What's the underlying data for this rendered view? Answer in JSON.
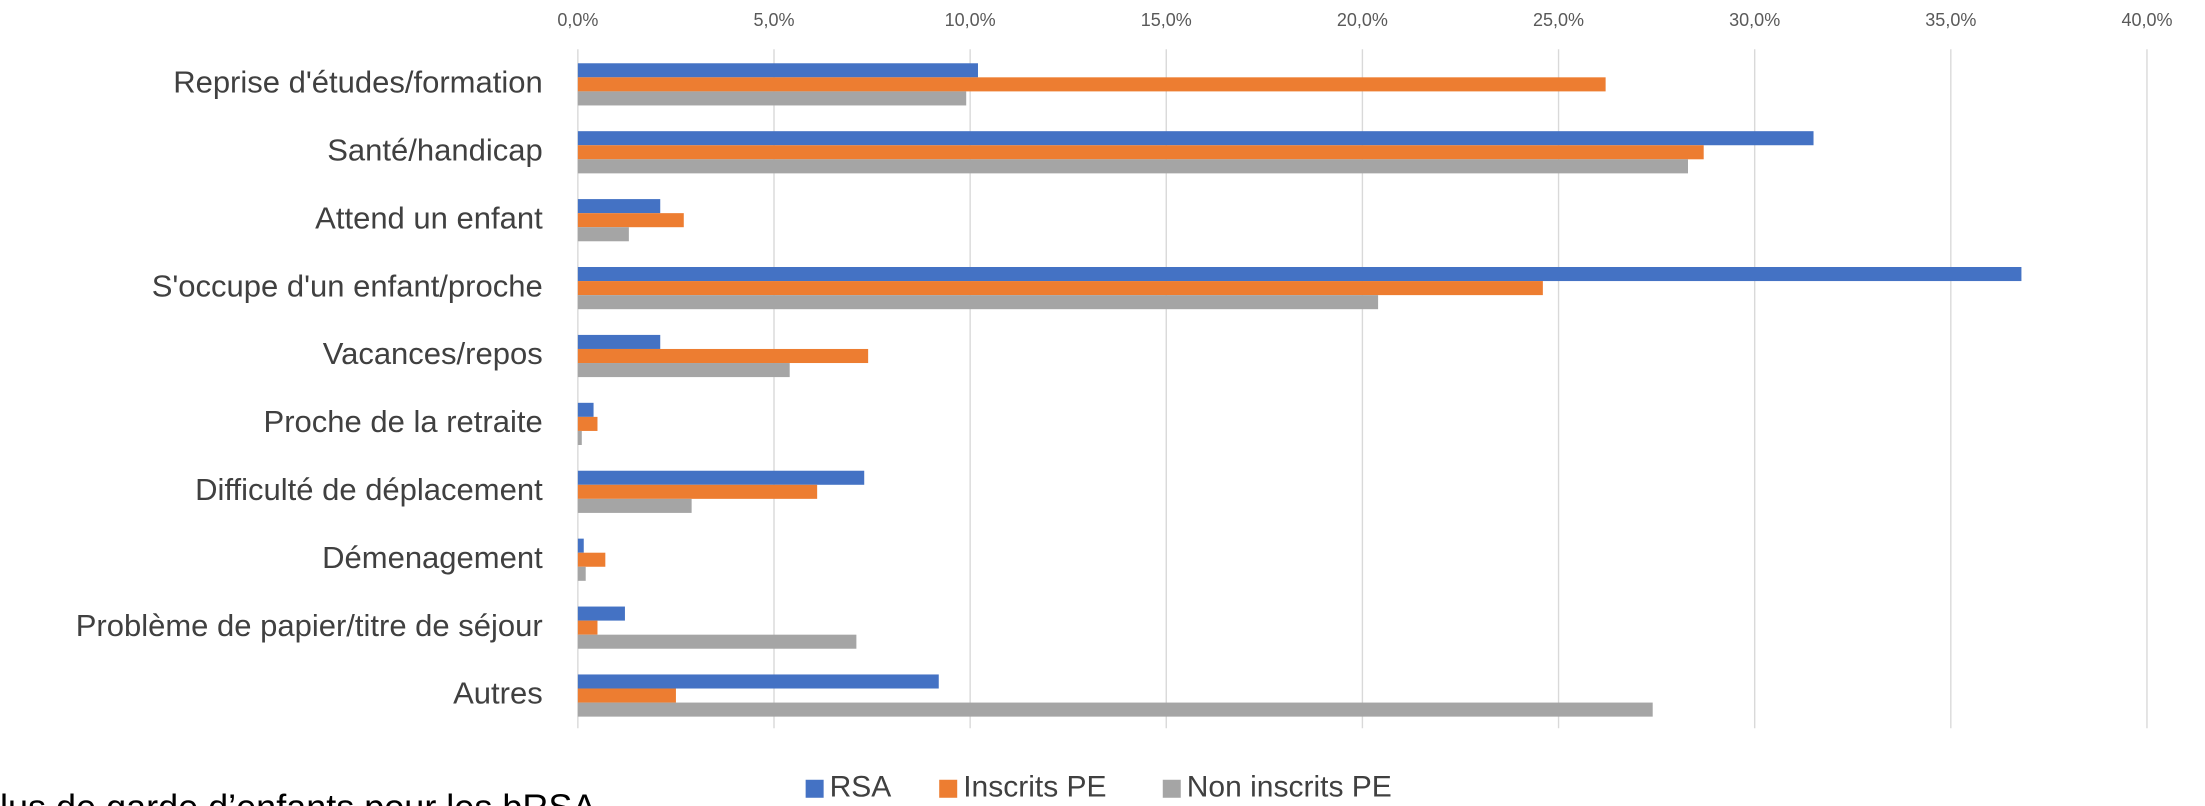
{
  "chart_data": {
    "type": "bar",
    "orientation": "horizontal",
    "categories": [
      "Reprise d'études/formation",
      "Santé/handicap",
      "Attend un enfant",
      "S'occupe d'un enfant/proche",
      "Vacances/repos",
      "Proche de la retraite",
      "Difficulté de déplacement",
      "Démenagement",
      "Problème de papier/titre de séjour",
      "Autres"
    ],
    "series": [
      {
        "name": "RSA",
        "color": "#4472c4",
        "values": [
          10.2,
          31.5,
          2.1,
          36.8,
          2.1,
          0.4,
          7.3,
          0.15,
          1.2,
          9.2
        ]
      },
      {
        "name": "Inscrits PE",
        "color": "#ed7d31",
        "values": [
          26.2,
          28.7,
          2.7,
          24.6,
          7.4,
          0.5,
          6.1,
          0.7,
          0.5,
          2.5
        ]
      },
      {
        "name": "Non inscrits PE",
        "color": "#a5a5a5",
        "values": [
          9.9,
          28.3,
          1.3,
          20.4,
          5.4,
          0.1,
          2.9,
          0.2,
          7.1,
          27.4
        ]
      }
    ],
    "xlim": [
      0,
      40
    ],
    "xticks": [
      {
        "value": 0,
        "label": "0,0%"
      },
      {
        "value": 5,
        "label": "5,0%"
      },
      {
        "value": 10,
        "label": "10,0%"
      },
      {
        "value": 15,
        "label": "15,0%"
      },
      {
        "value": 20,
        "label": "20,0%"
      },
      {
        "value": 25,
        "label": "25,0%"
      },
      {
        "value": 30,
        "label": "30,0%"
      },
      {
        "value": 35,
        "label": "35,0%"
      },
      {
        "value": 40,
        "label": "40,0%"
      }
    ],
    "grid": true,
    "legend": "bottom",
    "caption": "lus de garde d’enfants pour les bRSA"
  }
}
